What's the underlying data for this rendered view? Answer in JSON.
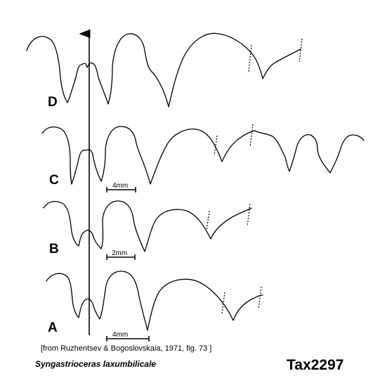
{
  "figure": {
    "sutures": [
      {
        "label": "D"
      },
      {
        "label": "C",
        "scale_label": "4mm"
      },
      {
        "label": "B",
        "scale_label": "2mm"
      },
      {
        "label": "A",
        "scale_label": "4mm"
      }
    ],
    "citation": "[from Ruzhentsev & Bogoslovskaia, 1971, fig. 73 ]",
    "species": "Syngastrioceras laxumbilicale",
    "taxon_id": "Tax2297"
  }
}
